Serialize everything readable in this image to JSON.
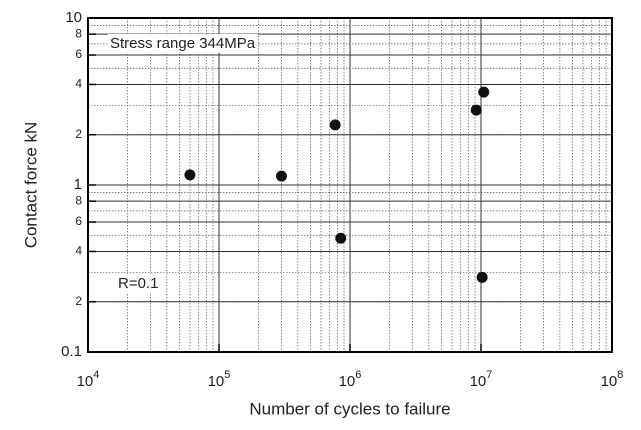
{
  "chart_data": {
    "type": "scatter",
    "xlabel": "Number of cycles to failure",
    "ylabel": "Contact  force   kN",
    "annotations": [
      "Stress range  344MPa",
      "R=0.1"
    ],
    "xlog": true,
    "ylog": true,
    "grid": true,
    "color": "#111111",
    "xlim": [
      10000,
      100000000
    ],
    "ylim": [
      0.1,
      10
    ],
    "xticks": [
      {
        "value": 10000,
        "label": "10",
        "exponent": "4"
      },
      {
        "value": 100000,
        "label": "10",
        "exponent": "5"
      },
      {
        "value": 1000000,
        "label": "10",
        "exponent": "6"
      },
      {
        "value": 10000000,
        "label": "10",
        "exponent": "7"
      },
      {
        "value": 100000000,
        "label": "10",
        "exponent": "8"
      }
    ],
    "yticks": [
      10,
      8,
      6,
      4,
      2,
      1,
      {
        "value": 0.8,
        "label": "8"
      },
      {
        "value": 0.6,
        "label": "6"
      },
      {
        "value": 0.4,
        "label": "4"
      },
      {
        "value": 0.2,
        "label": "2"
      },
      0.1
    ],
    "x": [
      60000,
      300000,
      770000,
      850000,
      9200000,
      10500000,
      10200000
    ],
    "values": [
      1.15,
      1.13,
      2.29,
      0.48,
      2.81,
      3.6,
      0.28
    ]
  }
}
